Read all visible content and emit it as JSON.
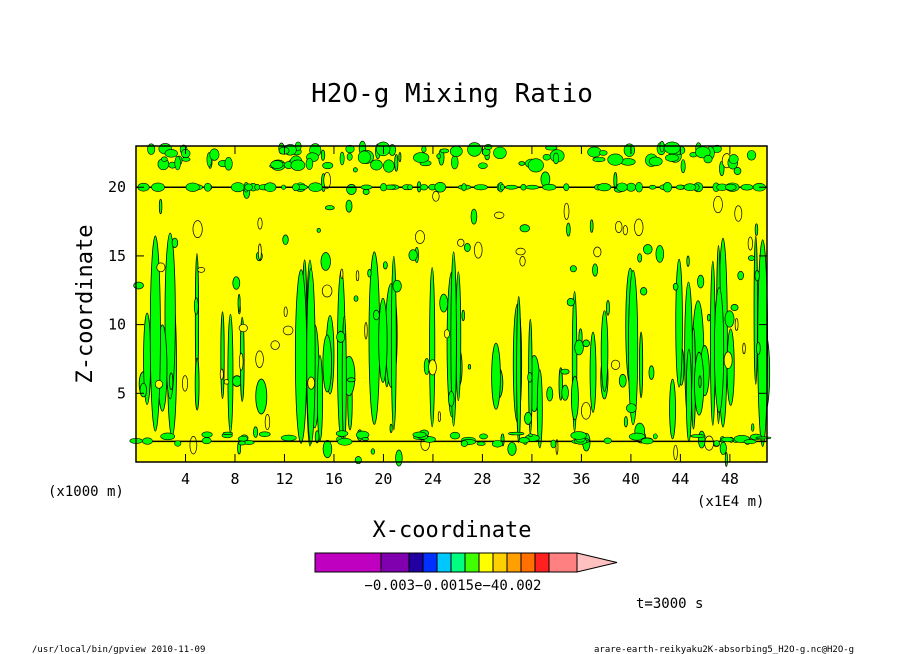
{
  "chart_data": {
    "type": "heatmap",
    "title": "H2O-g Mixing Ratio",
    "xlabel": "X-coordinate",
    "ylabel": "Z-coordinate",
    "x_unit_left": "(x1000 m)",
    "x_unit_right": "(x1E4 m)",
    "xlim": [
      0,
      51
    ],
    "ylim": [
      0,
      23
    ],
    "x_ticks": [
      "4",
      "8",
      "12",
      "16",
      "20",
      "24",
      "28",
      "32",
      "36",
      "40",
      "44",
      "48"
    ],
    "y_ticks": [
      "5",
      "10",
      "15",
      "20"
    ],
    "field_levels": [
      "yellow background",
      "green anomaly plumes"
    ],
    "colorbar": {
      "labels": [
        "-0.003",
        "-0.001",
        "5e-4",
        "0.002"
      ],
      "label_text": "−0.003−0.0015e−40.002",
      "colors": [
        "#c000c0",
        "#8000b0",
        "#2000a0",
        "#0030ff",
        "#00c8ff",
        "#00ff80",
        "#40ff00",
        "#ffff00",
        "#ffd000",
        "#ffa000",
        "#ff7000",
        "#ff2020",
        "#ff8080",
        "#ffc0c0"
      ]
    },
    "time_label": "t=3000 s"
  },
  "footer": {
    "left": "/usr/local/bin/gpview  2010-11-09",
    "right": "arare-earth-reikyaku2K-absorbing5_H2O-g.nc@H2O-g"
  },
  "colors": {
    "background_field": "#ffff00",
    "anomaly": "#00ff00",
    "contour": "#000000"
  }
}
